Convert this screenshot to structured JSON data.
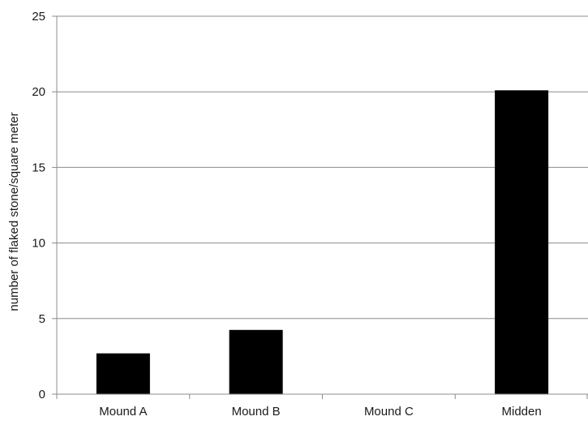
{
  "chart_data": {
    "type": "bar",
    "title": "",
    "xlabel": "",
    "ylabel": "number of flaked stone/square meter",
    "categories": [
      "Mound A",
      "Mound B",
      "Mound C",
      "Midden"
    ],
    "values": [
      2.7,
      4.25,
      0,
      20.1
    ],
    "ylim": [
      0,
      25
    ],
    "yticks": [
      0,
      5,
      10,
      15,
      20,
      25
    ],
    "grid": "horizontal",
    "legend": "none",
    "bar_color": "#000000",
    "grid_color": "#8c8c8c"
  }
}
